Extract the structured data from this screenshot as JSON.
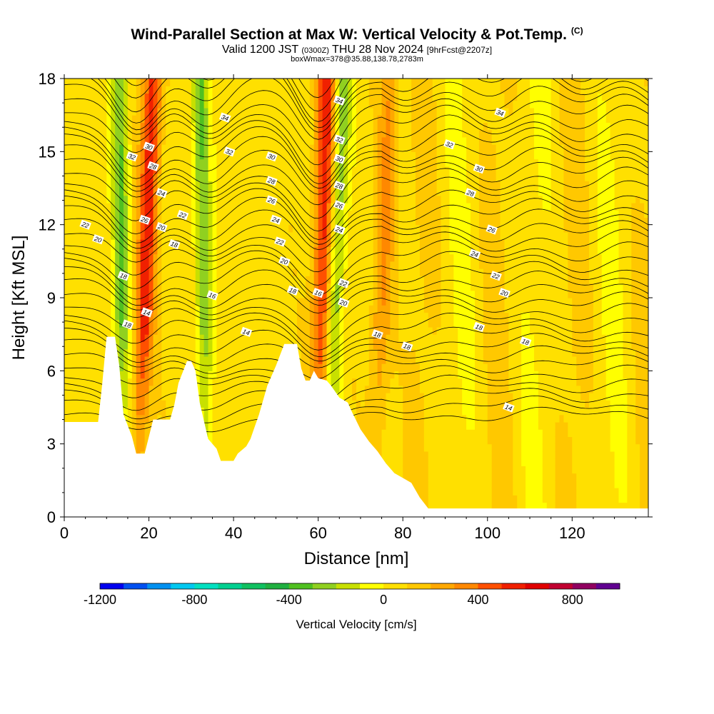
{
  "header": {
    "title": "Wind-Parallel Section at Max W: Vertical Velocity & Pot.Temp.",
    "copyright": "(C)",
    "valid_prefix": "Valid 1200 JST",
    "valid_utc": "(0300Z)",
    "valid_date": "THU 28 Nov 2024",
    "valid_fcst": "[9hrFcst@2207z]",
    "box_info": "boxWmax=378@35.88,138.78,2783m"
  },
  "chart_data": {
    "type": "heatmap",
    "xlabel": "Distance [nm]",
    "ylabel": "Height [Kft MSL]",
    "xlim": [
      0,
      138
    ],
    "ylim": [
      0,
      18
    ],
    "x_ticks": [
      0,
      20,
      40,
      60,
      80,
      100,
      120
    ],
    "y_ticks": [
      0,
      3,
      6,
      9,
      12,
      15,
      18
    ],
    "colorbar": {
      "label": "Vertical Velocity [cm/s]",
      "tick_labels": [
        -1200,
        -800,
        -400,
        0,
        400,
        800
      ],
      "levels": [
        -1200,
        -1100,
        -1000,
        -900,
        -800,
        -700,
        -600,
        -500,
        -400,
        -300,
        -200,
        -100,
        0,
        100,
        200,
        300,
        400,
        500,
        600,
        700,
        800,
        900
      ],
      "colors": [
        "#0000ee",
        "#0050f0",
        "#0090f0",
        "#00c8f0",
        "#00e0c0",
        "#00d090",
        "#10c060",
        "#20b040",
        "#50c020",
        "#90d020",
        "#c8e000",
        "#ffff00",
        "#ffe000",
        "#ffc800",
        "#ffa800",
        "#ff8800",
        "#ff5000",
        "#f02000",
        "#e00000",
        "#c00030",
        "#900060",
        "#600090"
      ]
    },
    "terrain": [
      [
        0,
        3.9
      ],
      [
        8,
        3.9
      ],
      [
        9,
        5.5
      ],
      [
        10,
        7.4
      ],
      [
        12,
        7.4
      ],
      [
        13,
        6.2
      ],
      [
        14,
        4.2
      ],
      [
        16,
        3.3
      ],
      [
        17,
        2.6
      ],
      [
        18,
        2.6
      ],
      [
        19,
        2.6
      ],
      [
        20,
        3.3
      ],
      [
        21,
        4.0
      ],
      [
        23,
        4.0
      ],
      [
        25,
        4.0
      ],
      [
        26,
        4.6
      ],
      [
        27,
        5.5
      ],
      [
        29,
        6.4
      ],
      [
        30,
        6.4
      ],
      [
        31,
        6.0
      ],
      [
        32,
        4.7
      ],
      [
        34,
        3.2
      ],
      [
        36,
        2.8
      ],
      [
        37,
        2.3
      ],
      [
        40,
        2.3
      ],
      [
        41,
        2.6
      ],
      [
        43,
        2.9
      ],
      [
        44,
        3.2
      ],
      [
        45,
        3.7
      ],
      [
        46,
        4.2
      ],
      [
        47,
        4.8
      ],
      [
        48,
        5.4
      ],
      [
        50,
        6.2
      ],
      [
        52,
        7.1
      ],
      [
        55,
        7.1
      ],
      [
        56,
        6.1
      ],
      [
        57,
        5.6
      ],
      [
        58,
        5.6
      ],
      [
        59,
        6.0
      ],
      [
        60,
        5.7
      ],
      [
        62,
        5.6
      ],
      [
        63,
        5.4
      ],
      [
        65,
        4.9
      ],
      [
        67,
        4.7
      ],
      [
        68,
        4.3
      ],
      [
        70,
        3.6
      ],
      [
        72,
        3.1
      ],
      [
        74,
        2.7
      ],
      [
        76,
        2.2
      ],
      [
        78,
        1.8
      ],
      [
        80,
        1.6
      ],
      [
        82,
        1.4
      ],
      [
        84,
        0.8
      ],
      [
        86,
        0.35
      ],
      [
        138,
        0.35
      ]
    ],
    "updraft_bands": [
      {
        "x_bottom": 17,
        "x_top": 21,
        "peak_cms": 500
      },
      {
        "x_bottom": 60,
        "x_top": 62,
        "peak_cms": 500
      },
      {
        "x_bottom": 73,
        "x_top": 77,
        "peak_cms": 250
      }
    ],
    "downdraft_bands": [
      {
        "x_bottom": 14,
        "x_top": 13,
        "peak_cms": -350
      },
      {
        "x_bottom": 34,
        "x_top": 32,
        "peak_cms": -350
      },
      {
        "x_bottom": 62,
        "x_top": 66,
        "peak_cms": -350
      }
    ],
    "isentrope_labels": [
      {
        "text": "22",
        "x": 5,
        "y": 12.0
      },
      {
        "text": "20",
        "x": 8,
        "y": 11.4
      },
      {
        "text": "18",
        "x": 14,
        "y": 9.9
      },
      {
        "text": "18",
        "x": 15,
        "y": 7.9
      },
      {
        "text": "14",
        "x": 19.5,
        "y": 8.4
      },
      {
        "text": "32",
        "x": 16,
        "y": 14.8
      },
      {
        "text": "30",
        "x": 20,
        "y": 15.2
      },
      {
        "text": "28",
        "x": 21,
        "y": 14.4
      },
      {
        "text": "24",
        "x": 23,
        "y": 13.3
      },
      {
        "text": "26",
        "x": 19,
        "y": 12.2
      },
      {
        "text": "20",
        "x": 23,
        "y": 11.9
      },
      {
        "text": "22",
        "x": 28,
        "y": 12.4
      },
      {
        "text": "18",
        "x": 26,
        "y": 11.2
      },
      {
        "text": "34",
        "x": 38,
        "y": 16.4
      },
      {
        "text": "32",
        "x": 39,
        "y": 15.0
      },
      {
        "text": "16",
        "x": 35,
        "y": 9.1
      },
      {
        "text": "14",
        "x": 43,
        "y": 7.6
      },
      {
        "text": "30",
        "x": 49,
        "y": 14.8
      },
      {
        "text": "28",
        "x": 49,
        "y": 13.8
      },
      {
        "text": "26",
        "x": 49,
        "y": 13.0
      },
      {
        "text": "24",
        "x": 50,
        "y": 12.2
      },
      {
        "text": "22",
        "x": 51,
        "y": 11.3
      },
      {
        "text": "20",
        "x": 52,
        "y": 10.5
      },
      {
        "text": "18",
        "x": 54,
        "y": 9.3
      },
      {
        "text": "16",
        "x": 60,
        "y": 9.2
      },
      {
        "text": "34",
        "x": 65,
        "y": 17.1
      },
      {
        "text": "32",
        "x": 65,
        "y": 15.5
      },
      {
        "text": "30",
        "x": 65,
        "y": 14.7
      },
      {
        "text": "28",
        "x": 65,
        "y": 13.6
      },
      {
        "text": "26",
        "x": 65,
        "y": 12.8
      },
      {
        "text": "24",
        "x": 65,
        "y": 11.8
      },
      {
        "text": "22",
        "x": 66,
        "y": 9.6
      },
      {
        "text": "20",
        "x": 66,
        "y": 8.8
      },
      {
        "text": "18",
        "x": 74,
        "y": 7.5
      },
      {
        "text": "18",
        "x": 81,
        "y": 7.0
      },
      {
        "text": "34",
        "x": 103,
        "y": 16.6
      },
      {
        "text": "32",
        "x": 91,
        "y": 15.3
      },
      {
        "text": "30",
        "x": 98,
        "y": 14.3
      },
      {
        "text": "28",
        "x": 96,
        "y": 13.3
      },
      {
        "text": "26",
        "x": 101,
        "y": 11.8
      },
      {
        "text": "24",
        "x": 97,
        "y": 10.8
      },
      {
        "text": "22",
        "x": 102,
        "y": 9.9
      },
      {
        "text": "20",
        "x": 104,
        "y": 9.2
      },
      {
        "text": "18",
        "x": 98,
        "y": 7.8
      },
      {
        "text": "18",
        "x": 109,
        "y": 7.2
      },
      {
        "text": "14",
        "x": 105,
        "y": 4.5
      }
    ]
  }
}
